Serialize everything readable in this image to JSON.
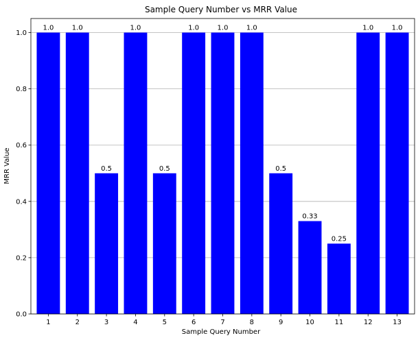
{
  "chart_data": {
    "type": "bar",
    "title": "Sample Query Number vs MRR Value",
    "xlabel": "Sample Query Number",
    "ylabel": "MRR Value",
    "categories": [
      "1",
      "2",
      "3",
      "4",
      "5",
      "6",
      "7",
      "8",
      "9",
      "10",
      "11",
      "12",
      "13"
    ],
    "values": [
      1.0,
      1.0,
      0.5,
      1.0,
      0.5,
      1.0,
      1.0,
      1.0,
      0.5,
      0.33,
      0.25,
      1.0,
      1.0
    ],
    "data_labels": [
      "1.0",
      "1.0",
      "0.5",
      "1.0",
      "0.5",
      "1.0",
      "1.0",
      "1.0",
      "0.5",
      "0.33",
      "0.25",
      "1.0",
      "1.0"
    ],
    "ylim": [
      0,
      1.05
    ],
    "yticks": [
      0.0,
      0.2,
      0.4,
      0.6,
      0.8,
      1.0
    ],
    "ytick_labels": [
      "0.0",
      "0.2",
      "0.4",
      "0.6",
      "0.8",
      "1.0"
    ],
    "grid": "y",
    "bar_color": "#0000ff",
    "grid_color": "#b0b0b0"
  }
}
